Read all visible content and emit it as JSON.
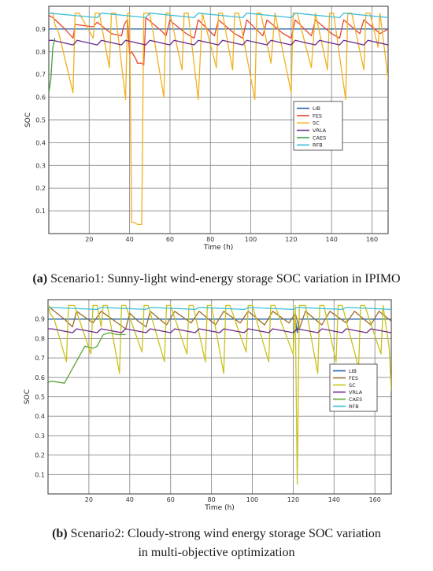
{
  "chart_data": [
    {
      "type": "line",
      "panel_caption": {
        "tag": "(a)",
        "text": " Scenario1: Sunny-light wind-energy storage SOC variation in IPIMO"
      },
      "xlabel": "Time (h)",
      "ylabel": "SOC",
      "xlim": [
        0,
        168
      ],
      "ylim": [
        0,
        1
      ],
      "xticks": [
        20,
        40,
        60,
        80,
        100,
        120,
        140,
        160
      ],
      "yticks": [
        0.1,
        0.2,
        0.3,
        0.4,
        0.5,
        0.6,
        0.7,
        0.8,
        0.9
      ],
      "grid": true,
      "legend_position": "right-center",
      "series": [
        {
          "name": "LIB",
          "color": "#1f5fa8",
          "x": [
            0,
            168
          ],
          "y": [
            0.9,
            0.9
          ]
        },
        {
          "name": "FES",
          "color": "#e8452c",
          "x": [
            0,
            2,
            8,
            12,
            13,
            22,
            24,
            31,
            36,
            37,
            38,
            39,
            40,
            41,
            43,
            44,
            46,
            47,
            48,
            52,
            56,
            58,
            60,
            61,
            68,
            72,
            74,
            82,
            84,
            92,
            96,
            98,
            106,
            108,
            116,
            120,
            122,
            130,
            132,
            140,
            144,
            146,
            154,
            156,
            164,
            168
          ],
          "y": [
            0.96,
            0.95,
            0.9,
            0.86,
            0.92,
            0.91,
            0.93,
            0.88,
            0.87,
            0.91,
            0.93,
            0.94,
            0.79,
            0.8,
            0.77,
            0.75,
            0.75,
            0.74,
            0.95,
            0.92,
            0.89,
            0.87,
            0.94,
            0.93,
            0.88,
            0.86,
            0.94,
            0.87,
            0.94,
            0.88,
            0.86,
            0.94,
            0.87,
            0.94,
            0.88,
            0.86,
            0.94,
            0.87,
            0.94,
            0.88,
            0.86,
            0.94,
            0.88,
            0.94,
            0.88,
            0.9
          ]
        },
        {
          "name": "SC",
          "color": "#f2b01e",
          "x": [
            0,
            2,
            3,
            5,
            12,
            13,
            15,
            22,
            23,
            25,
            30,
            31,
            33,
            38,
            39,
            40,
            41,
            42,
            44,
            46,
            47,
            48,
            50,
            57,
            58,
            60,
            66,
            67,
            69,
            74,
            76,
            83,
            84,
            86,
            91,
            92,
            94,
            102,
            103,
            105,
            110,
            112,
            120,
            121,
            123,
            130,
            132,
            138,
            139,
            141,
            147,
            148,
            150,
            156,
            157,
            159,
            163,
            164,
            168
          ],
          "y": [
            0.97,
            0.97,
            0.92,
            0.88,
            0.62,
            0.97,
            0.97,
            0.86,
            0.97,
            0.97,
            0.73,
            0.97,
            0.97,
            0.59,
            0.97,
            0.97,
            0.05,
            0.05,
            0.04,
            0.04,
            0.97,
            0.97,
            0.97,
            0.6,
            0.97,
            0.97,
            0.72,
            0.97,
            0.97,
            0.59,
            0.97,
            0.73,
            0.97,
            0.97,
            0.72,
            0.97,
            0.97,
            0.59,
            0.97,
            0.97,
            0.75,
            0.97,
            0.62,
            0.97,
            0.97,
            0.73,
            0.97,
            0.72,
            0.97,
            0.97,
            0.59,
            0.97,
            0.97,
            0.72,
            0.97,
            0.97,
            0.82,
            0.97,
            0.68
          ]
        },
        {
          "name": "VRLA",
          "color": "#6b2a8c",
          "x": [
            0,
            2,
            12,
            14,
            24,
            26,
            36,
            38,
            48,
            50,
            60,
            62,
            72,
            74,
            84,
            86,
            96,
            98,
            108,
            110,
            120,
            122,
            132,
            134,
            144,
            146,
            156,
            158,
            168
          ],
          "y": [
            0.85,
            0.85,
            0.83,
            0.85,
            0.83,
            0.85,
            0.83,
            0.85,
            0.83,
            0.85,
            0.83,
            0.85,
            0.83,
            0.85,
            0.83,
            0.85,
            0.83,
            0.85,
            0.83,
            0.85,
            0.83,
            0.85,
            0.83,
            0.85,
            0.83,
            0.85,
            0.83,
            0.85,
            0.83
          ]
        },
        {
          "name": "CAES",
          "color": "#3fa33f",
          "x": [
            0,
            1,
            2,
            3
          ],
          "y": [
            0.62,
            0.68,
            0.82,
            0.86
          ]
        },
        {
          "name": "RFB",
          "color": "#3bbfd9",
          "x": [
            0,
            24,
            26,
            48,
            50,
            72,
            74,
            96,
            98,
            120,
            122,
            144,
            146,
            168
          ],
          "y": [
            0.97,
            0.95,
            0.97,
            0.95,
            0.97,
            0.95,
            0.97,
            0.95,
            0.97,
            0.95,
            0.97,
            0.95,
            0.97,
            0.95
          ]
        }
      ]
    },
    {
      "type": "line",
      "panel_caption": {
        "tag": "(b)",
        "line1": " Scenario2: Cloudy-strong wind energy storage SOC variation",
        "line2": "in multi-objective optimization"
      },
      "xlabel": "Time (h)",
      "ylabel": "SOC",
      "xlim": [
        0,
        168
      ],
      "ylim": [
        0,
        1
      ],
      "xticks": [
        20,
        40,
        60,
        80,
        100,
        120,
        140,
        160
      ],
      "yticks": [
        0.1,
        0.2,
        0.3,
        0.4,
        0.5,
        0.6,
        0.7,
        0.8,
        0.9
      ],
      "grid": true,
      "legend_position": "right-center",
      "series": [
        {
          "name": "LIB",
          "color": "#1f5fa8",
          "x": [
            0,
            121,
            122,
            123,
            124,
            168
          ],
          "y": [
            0.9,
            0.9,
            0.83,
            0.9,
            0.9,
            0.9
          ]
        },
        {
          "name": "FES",
          "color": "#9c6a2a",
          "x": [
            0,
            2,
            8,
            12,
            14,
            22,
            26,
            34,
            38,
            40,
            44,
            48,
            50,
            58,
            62,
            70,
            74,
            82,
            86,
            94,
            98,
            106,
            110,
            118,
            121,
            123,
            126,
            134,
            138,
            146,
            150,
            158,
            162,
            168
          ],
          "y": [
            0.97,
            0.95,
            0.9,
            0.86,
            0.94,
            0.88,
            0.94,
            0.88,
            0.85,
            0.93,
            0.89,
            0.86,
            0.94,
            0.87,
            0.94,
            0.88,
            0.94,
            0.87,
            0.94,
            0.88,
            0.94,
            0.87,
            0.94,
            0.88,
            0.93,
            0.85,
            0.94,
            0.87,
            0.94,
            0.88,
            0.94,
            0.87,
            0.94,
            0.89
          ]
        },
        {
          "name": "SC",
          "color": "#c9c21a",
          "x": [
            0,
            1,
            3,
            9,
            10,
            13,
            21,
            22,
            24,
            26,
            27,
            29,
            35,
            36,
            38,
            46,
            47,
            49,
            57,
            58,
            60,
            68,
            69,
            71,
            77,
            78,
            80,
            86,
            87,
            89,
            97,
            98,
            100,
            108,
            109,
            111,
            120,
            121,
            122,
            123,
            124,
            126,
            132,
            133,
            135,
            141,
            142,
            144,
            152,
            153,
            155,
            163,
            164,
            167,
            168
          ],
          "y": [
            0.97,
            0.93,
            0.9,
            0.68,
            0.97,
            0.97,
            0.72,
            0.97,
            0.97,
            0.86,
            0.97,
            0.97,
            0.62,
            0.97,
            0.97,
            0.73,
            0.97,
            0.97,
            0.68,
            0.97,
            0.97,
            0.72,
            0.97,
            0.97,
            0.68,
            0.97,
            0.97,
            0.62,
            0.97,
            0.97,
            0.73,
            0.97,
            0.97,
            0.68,
            0.97,
            0.97,
            0.72,
            0.97,
            0.05,
            0.97,
            0.97,
            0.97,
            0.62,
            0.97,
            0.97,
            0.68,
            0.97,
            0.97,
            0.65,
            0.97,
            0.97,
            0.72,
            0.97,
            0.75,
            0.53
          ]
        },
        {
          "name": "VRLA",
          "color": "#6b2a8c",
          "x": [
            0,
            2,
            12,
            14,
            24,
            26,
            36,
            38,
            48,
            50,
            60,
            62,
            72,
            74,
            84,
            86,
            96,
            98,
            108,
            110,
            120,
            122,
            132,
            134,
            144,
            146,
            156,
            158,
            168
          ],
          "y": [
            0.85,
            0.85,
            0.83,
            0.85,
            0.83,
            0.85,
            0.83,
            0.85,
            0.83,
            0.85,
            0.83,
            0.85,
            0.83,
            0.85,
            0.83,
            0.85,
            0.83,
            0.85,
            0.83,
            0.85,
            0.83,
            0.85,
            0.83,
            0.85,
            0.83,
            0.85,
            0.83,
            0.85,
            0.83
          ]
        },
        {
          "name": "CAES",
          "color": "#5ea43a",
          "x": [
            0,
            1,
            2,
            8,
            18,
            22,
            24,
            27,
            30,
            34,
            38
          ],
          "y": [
            0.57,
            0.58,
            0.58,
            0.57,
            0.76,
            0.75,
            0.76,
            0.82,
            0.83,
            0.82,
            0.82
          ]
        },
        {
          "name": "RFB",
          "color": "#3bbfd9",
          "x": [
            0,
            24,
            26,
            48,
            50,
            72,
            74,
            96,
            98,
            120,
            122,
            144,
            146,
            168
          ],
          "y": [
            0.96,
            0.95,
            0.96,
            0.95,
            0.96,
            0.95,
            0.96,
            0.95,
            0.96,
            0.95,
            0.96,
            0.95,
            0.96,
            0.95
          ]
        }
      ]
    }
  ]
}
